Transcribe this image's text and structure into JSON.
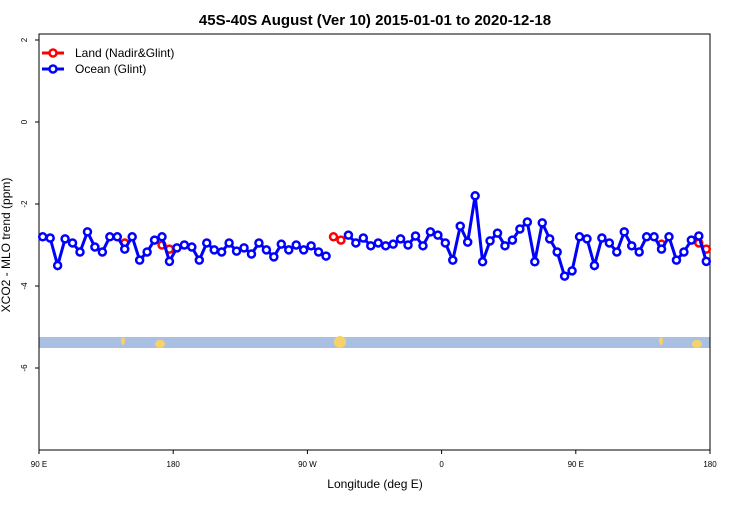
{
  "chart_data": {
    "type": "line",
    "title": "45S-40S August (Ver 10)   2015-01-01 to 2020-12-18",
    "x_label": "Longitude (deg E)",
    "y_label": "XCO2 - MLO trend (ppm)",
    "xlim": [
      90,
      540
    ],
    "ylim": [
      -8,
      2
    ],
    "xticks": [
      {
        "value": 90,
        "label": "90 E"
      },
      {
        "value": 180,
        "label": "180"
      },
      {
        "value": 270,
        "label": "90 W"
      },
      {
        "value": 360,
        "label": "0"
      },
      {
        "value": 450,
        "label": "90 E"
      },
      {
        "value": 540,
        "label": "180"
      }
    ],
    "yticks": [
      2,
      0,
      -2,
      -4,
      -6
    ],
    "legend": "top-left",
    "x": [
      92.5,
      97.5,
      102.5,
      107.5,
      112.5,
      117.5,
      122.5,
      127.5,
      132.5,
      137.5,
      142.5,
      147.5,
      152.5,
      157.5,
      162.5,
      167.5,
      172.5,
      177.5,
      182.5,
      187.5,
      192.5,
      197.5,
      202.5,
      207.5,
      212.5,
      217.5,
      222.5,
      227.5,
      232.5,
      237.5,
      242.5,
      247.5,
      252.5,
      257.5,
      262.5,
      267.5,
      272.5,
      277.5,
      282.5,
      287.5,
      292.5,
      297.5,
      302.5,
      307.5,
      312.5,
      317.5,
      322.5,
      327.5,
      332.5,
      337.5,
      342.5,
      347.5,
      352.5,
      357.5,
      362.5,
      367.5,
      372.5,
      377.5,
      382.5,
      387.5,
      392.5,
      397.5,
      402.5,
      407.5,
      412.5,
      417.5,
      422.5,
      427.5,
      432.5,
      437.5,
      442.5,
      447.5,
      452.5,
      457.5,
      462.5,
      467.5,
      472.5,
      477.5,
      482.5,
      487.5,
      492.5,
      497.5,
      502.5,
      507.5,
      512.5,
      517.5,
      522.5,
      527.5,
      532.5,
      537.5
    ],
    "series": [
      {
        "name": "Land (Nadir&Glint)",
        "color": "#ff0000",
        "values": [
          null,
          null,
          null,
          null,
          null,
          null,
          null,
          null,
          null,
          null,
          null,
          -2.95,
          null,
          null,
          null,
          null,
          -3.0,
          -3.1,
          null,
          null,
          null,
          null,
          null,
          null,
          null,
          null,
          null,
          null,
          null,
          null,
          null,
          null,
          null,
          null,
          null,
          null,
          null,
          null,
          null,
          -2.8,
          -2.88,
          null,
          null,
          null,
          null,
          null,
          null,
          null,
          null,
          null,
          null,
          null,
          null,
          null,
          null,
          null,
          null,
          null,
          null,
          null,
          null,
          null,
          null,
          null,
          null,
          null,
          null,
          null,
          null,
          null,
          null,
          null,
          null,
          null,
          null,
          null,
          null,
          null,
          null,
          null,
          null,
          null,
          null,
          -2.98,
          null,
          null,
          null,
          null,
          -2.95,
          -3.1
        ]
      },
      {
        "name": "Ocean (Glint)",
        "color": "#0000ff",
        "values": [
          -2.8,
          -2.83,
          -3.5,
          -2.85,
          -2.95,
          -3.17,
          -2.68,
          -3.05,
          -3.17,
          -2.8,
          -2.8,
          -3.1,
          -2.8,
          -3.37,
          -3.17,
          -2.88,
          -2.8,
          -3.4,
          -3.07,
          -3.0,
          -3.05,
          -3.37,
          -2.95,
          -3.12,
          -3.17,
          -2.95,
          -3.15,
          -3.07,
          -3.22,
          -2.95,
          -3.12,
          -3.29,
          -2.98,
          -3.12,
          -3.0,
          -3.12,
          -3.02,
          -3.17,
          -3.27,
          null,
          null,
          -2.76,
          -2.95,
          -2.83,
          -3.02,
          -2.95,
          -3.02,
          -2.98,
          -2.85,
          -3.0,
          -2.78,
          -3.02,
          -2.68,
          -2.76,
          -2.95,
          -3.37,
          -2.54,
          -2.93,
          -1.8,
          -3.41,
          -2.9,
          -2.71,
          -3.02,
          -2.88,
          -2.61,
          -2.44,
          -3.41,
          -2.46,
          -2.85,
          -3.17,
          -3.76,
          -3.63,
          -2.8,
          -2.85,
          -3.5,
          -2.83,
          -2.95,
          -3.17,
          -2.68,
          -3.02,
          -3.17,
          -2.8,
          -2.8,
          -3.1,
          -2.8,
          -3.37,
          -3.17,
          -2.88,
          -2.78,
          -3.4
        ]
      }
    ]
  }
}
